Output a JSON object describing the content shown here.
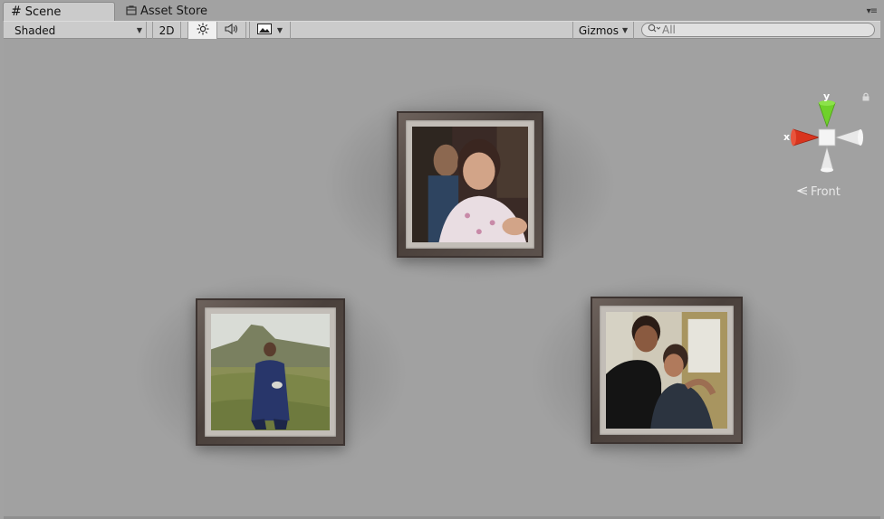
{
  "tabs": [
    {
      "label": "Scene",
      "icon": "hash-icon",
      "active": true
    },
    {
      "label": "Asset Store",
      "icon": "store-bag-icon",
      "active": false
    }
  ],
  "toolbar": {
    "draw_mode": "Shaded",
    "mode_2d": "2D",
    "gizmos_label": "Gizmos",
    "search_placeholder": "All"
  },
  "gizmo": {
    "x_label": "x",
    "y_label": "y",
    "view_label": "Front",
    "colors": {
      "x_axis": "#d8341e",
      "y_axis": "#6fd12a",
      "neutral": "#e9e9e9"
    }
  },
  "frames": [
    {
      "name": "top-photo",
      "subject": "two children indoors"
    },
    {
      "name": "left-photo",
      "subject": "person standing in field with mountain"
    },
    {
      "name": "right-photo",
      "subject": "couple embracing"
    }
  ]
}
